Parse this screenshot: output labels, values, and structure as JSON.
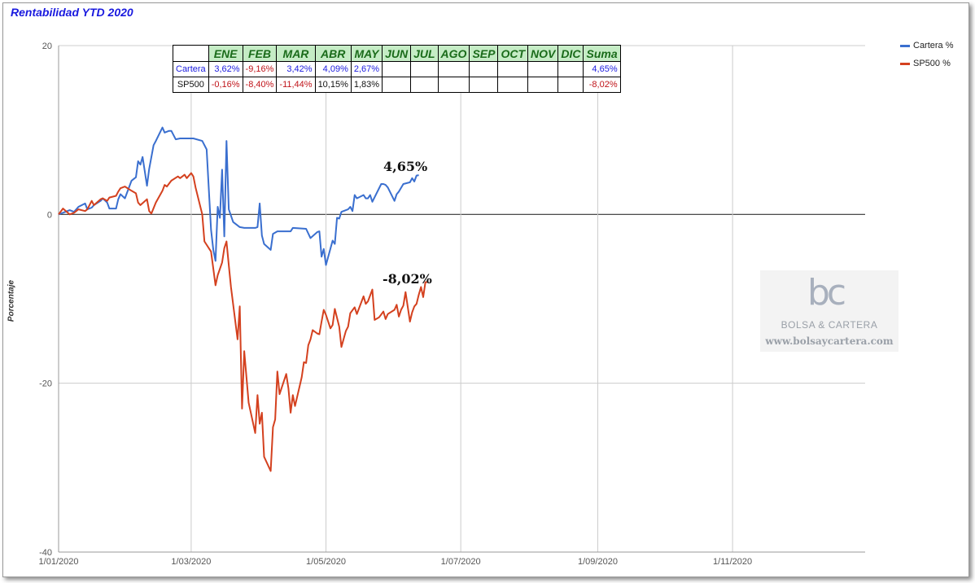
{
  "chart_data": {
    "type": "line",
    "title": "Rentabilidad YTD 2020",
    "ylabel": "Porcentaje",
    "xlabel": "",
    "ylim": [
      -40,
      20
    ],
    "y_ticks": [
      20,
      0,
      -20,
      -40
    ],
    "x_range": [
      "2020-01-01",
      "2020-12-31"
    ],
    "x_ticks": [
      {
        "date": "2020-01-01",
        "label": "1/01/2020"
      },
      {
        "date": "2020-03-01",
        "label": "1/03/2020"
      },
      {
        "date": "2020-05-01",
        "label": "1/05/2020"
      },
      {
        "date": "2020-07-01",
        "label": "1/07/2020"
      },
      {
        "date": "2020-09-01",
        "label": "1/09/2020"
      },
      {
        "date": "2020-11-01",
        "label": "1/11/2020"
      }
    ],
    "grid": true,
    "legend_position": "top-right",
    "series": [
      {
        "name": "Cartera %",
        "color": "#3a6fcf",
        "points": [
          [
            "2020-01-01",
            0
          ],
          [
            "2020-01-03",
            0.2
          ],
          [
            "2020-01-06",
            0.5
          ],
          [
            "2020-01-08",
            0.3
          ],
          [
            "2020-01-10",
            0.9
          ],
          [
            "2020-01-13",
            1.3
          ],
          [
            "2020-01-14",
            0.6
          ],
          [
            "2020-01-16",
            0.8
          ],
          [
            "2020-01-17",
            1.1
          ],
          [
            "2020-01-20",
            1.6
          ],
          [
            "2020-01-21",
            1.9
          ],
          [
            "2020-01-23",
            1.4
          ],
          [
            "2020-01-24",
            0.7
          ],
          [
            "2020-01-27",
            0.7
          ],
          [
            "2020-01-28",
            1.8
          ],
          [
            "2020-01-29",
            2.4
          ],
          [
            "2020-01-31",
            1.9
          ],
          [
            "2020-02-03",
            4.0
          ],
          [
            "2020-02-05",
            4.4
          ],
          [
            "2020-02-06",
            6.3
          ],
          [
            "2020-02-07",
            5.9
          ],
          [
            "2020-02-08",
            6.8
          ],
          [
            "2020-02-10",
            3.4
          ],
          [
            "2020-02-11",
            5.4
          ],
          [
            "2020-02-13",
            8.2
          ],
          [
            "2020-02-14",
            8.7
          ],
          [
            "2020-02-17",
            10.3
          ],
          [
            "2020-02-18",
            9.7
          ],
          [
            "2020-02-20",
            9.9
          ],
          [
            "2020-02-21",
            9.9
          ],
          [
            "2020-02-23",
            8.9
          ],
          [
            "2020-02-25",
            9.0
          ],
          [
            "2020-03-02",
            9.0
          ],
          [
            "2020-03-06",
            8.7
          ],
          [
            "2020-03-08",
            7.7
          ],
          [
            "2020-03-10",
            -1.8
          ],
          [
            "2020-03-11",
            -4.2
          ],
          [
            "2020-03-12",
            -5.5
          ],
          [
            "2020-03-13",
            0.9
          ],
          [
            "2020-03-14",
            -0.4
          ],
          [
            "2020-03-15",
            5.3
          ],
          [
            "2020-03-16",
            -2.6
          ],
          [
            "2020-03-17",
            8.7
          ],
          [
            "2020-03-18",
            0.6
          ],
          [
            "2020-03-20",
            -0.9
          ],
          [
            "2020-03-23",
            -1.5
          ],
          [
            "2020-03-25",
            -1.6
          ],
          [
            "2020-03-30",
            -1.6
          ],
          [
            "2020-03-31",
            -1.5
          ],
          [
            "2020-04-01",
            1.3
          ],
          [
            "2020-04-02",
            -2.5
          ],
          [
            "2020-04-03",
            -3.5
          ],
          [
            "2020-04-06",
            -4.2
          ],
          [
            "2020-04-07",
            -2.3
          ],
          [
            "2020-04-09",
            -2.0
          ],
          [
            "2020-04-14",
            -2.0
          ],
          [
            "2020-04-15",
            -2.0
          ],
          [
            "2020-04-16",
            -1.6
          ],
          [
            "2020-04-22",
            -1.7
          ],
          [
            "2020-04-24",
            -2.8
          ],
          [
            "2020-04-27",
            -2.1
          ],
          [
            "2020-04-28",
            -2.0
          ],
          [
            "2020-04-29",
            -5.0
          ],
          [
            "2020-04-30",
            -4.1
          ],
          [
            "2020-05-01",
            -6.0
          ],
          [
            "2020-05-04",
            -3.1
          ],
          [
            "2020-05-05",
            -3.5
          ],
          [
            "2020-05-06",
            -0.4
          ],
          [
            "2020-05-07",
            -0.5
          ],
          [
            "2020-05-08",
            0.3
          ],
          [
            "2020-05-11",
            0.6
          ],
          [
            "2020-05-12",
            0.9
          ],
          [
            "2020-05-13",
            0.4
          ],
          [
            "2020-05-14",
            2.3
          ],
          [
            "2020-05-15",
            1.9
          ],
          [
            "2020-05-18",
            2.3
          ],
          [
            "2020-05-19",
            1.9
          ],
          [
            "2020-05-20",
            1.9
          ],
          [
            "2020-05-21",
            2.3
          ],
          [
            "2020-05-22",
            1.5
          ],
          [
            "2020-05-26",
            3.6
          ],
          [
            "2020-05-27",
            3.6
          ],
          [
            "2020-05-28",
            3.5
          ],
          [
            "2020-05-29",
            3.2
          ],
          [
            "2020-06-01",
            1.6
          ],
          [
            "2020-06-02",
            2.4
          ],
          [
            "2020-06-03",
            2.7
          ],
          [
            "2020-06-05",
            3.6
          ],
          [
            "2020-06-08",
            3.8
          ],
          [
            "2020-06-09",
            4.3
          ],
          [
            "2020-06-10",
            3.9
          ],
          [
            "2020-06-11",
            4.6
          ],
          [
            "2020-06-12",
            4.65
          ]
        ]
      },
      {
        "name": "SP500 %",
        "color": "#d4411f",
        "points": [
          [
            "2020-01-01",
            0
          ],
          [
            "2020-01-03",
            0.7
          ],
          [
            "2020-01-06",
            0
          ],
          [
            "2020-01-08",
            0.2
          ],
          [
            "2020-01-10",
            0.6
          ],
          [
            "2020-01-13",
            0.4
          ],
          [
            "2020-01-14",
            0.6
          ],
          [
            "2020-01-16",
            1.6
          ],
          [
            "2020-01-17",
            1.1
          ],
          [
            "2020-01-20",
            1.8
          ],
          [
            "2020-01-21",
            1.9
          ],
          [
            "2020-01-23",
            1.6
          ],
          [
            "2020-01-24",
            2.0
          ],
          [
            "2020-01-27",
            2.2
          ],
          [
            "2020-01-28",
            2.7
          ],
          [
            "2020-01-29",
            3.1
          ],
          [
            "2020-01-31",
            3.3
          ],
          [
            "2020-02-03",
            2.8
          ],
          [
            "2020-02-05",
            2.5
          ],
          [
            "2020-02-06",
            1.4
          ],
          [
            "2020-02-07",
            1.1
          ],
          [
            "2020-02-10",
            1.8
          ],
          [
            "2020-02-11",
            0.4
          ],
          [
            "2020-02-12",
            0.1
          ],
          [
            "2020-02-14",
            1.4
          ],
          [
            "2020-02-17",
            2.8
          ],
          [
            "2020-02-18",
            3.5
          ],
          [
            "2020-02-19",
            3.3
          ],
          [
            "2020-02-21",
            4.0
          ],
          [
            "2020-02-24",
            4.5
          ],
          [
            "2020-02-25",
            4.3
          ],
          [
            "2020-02-27",
            4.7
          ],
          [
            "2020-02-28",
            4.3
          ],
          [
            "2020-03-01",
            4.9
          ],
          [
            "2020-03-02",
            4.5
          ],
          [
            "2020-03-03",
            3.2
          ],
          [
            "2020-03-06",
            0
          ],
          [
            "2020-03-07",
            -3.2
          ],
          [
            "2020-03-09",
            -4.0
          ],
          [
            "2020-03-10",
            -4.4
          ],
          [
            "2020-03-12",
            -8.4
          ],
          [
            "2020-03-13",
            -7.2
          ],
          [
            "2020-03-15",
            -5.7
          ],
          [
            "2020-03-16",
            -4.0
          ],
          [
            "2020-03-17",
            -3.2
          ],
          [
            "2020-03-18",
            -6.0
          ],
          [
            "2020-03-19",
            -8.6
          ],
          [
            "2020-03-22",
            -14.8
          ],
          [
            "2020-03-23",
            -10.9
          ],
          [
            "2020-03-24",
            -23.0
          ],
          [
            "2020-03-25",
            -16.2
          ],
          [
            "2020-03-27",
            -22.3
          ],
          [
            "2020-03-30",
            -25.9
          ],
          [
            "2020-03-31",
            -21.4
          ],
          [
            "2020-04-01",
            -24.8
          ],
          [
            "2020-04-02",
            -23.5
          ],
          [
            "2020-04-03",
            -28.7
          ],
          [
            "2020-04-06",
            -30.4
          ],
          [
            "2020-04-07",
            -25.2
          ],
          [
            "2020-04-08",
            -24.3
          ],
          [
            "2020-04-09",
            -18.6
          ],
          [
            "2020-04-10",
            -21.3
          ],
          [
            "2020-04-13",
            -18.9
          ],
          [
            "2020-04-14",
            -20.6
          ],
          [
            "2020-04-15",
            -23.5
          ],
          [
            "2020-04-16",
            -21.4
          ],
          [
            "2020-04-17",
            -22.7
          ],
          [
            "2020-04-20",
            -19.3
          ],
          [
            "2020-04-21",
            -17.5
          ],
          [
            "2020-04-22",
            -17.6
          ],
          [
            "2020-04-23",
            -15.5
          ],
          [
            "2020-04-24",
            -14.8
          ],
          [
            "2020-04-25",
            -13.7
          ],
          [
            "2020-04-27",
            -14.1
          ],
          [
            "2020-04-28",
            -14.2
          ],
          [
            "2020-04-29",
            -12.7
          ],
          [
            "2020-04-30",
            -11.3
          ],
          [
            "2020-05-01",
            -11.9
          ],
          [
            "2020-05-03",
            -13.5
          ],
          [
            "2020-05-04",
            -13.1
          ],
          [
            "2020-05-05",
            -11.2
          ],
          [
            "2020-05-07",
            -13.3
          ],
          [
            "2020-05-08",
            -15.7
          ],
          [
            "2020-05-10",
            -13.8
          ],
          [
            "2020-05-11",
            -13.3
          ],
          [
            "2020-05-12",
            -11.7
          ],
          [
            "2020-05-14",
            -11.0
          ],
          [
            "2020-05-15",
            -11.8
          ],
          [
            "2020-05-18",
            -9.7
          ],
          [
            "2020-05-19",
            -10.6
          ],
          [
            "2020-05-20",
            -10.3
          ],
          [
            "2020-05-21",
            -9.6
          ],
          [
            "2020-05-22",
            -8.9
          ],
          [
            "2020-05-23",
            -12.5
          ],
          [
            "2020-05-25",
            -12.2
          ],
          [
            "2020-05-27",
            -11.5
          ],
          [
            "2020-05-28",
            -12.4
          ],
          [
            "2020-05-29",
            -11.8
          ],
          [
            "2020-06-01",
            -11.3
          ],
          [
            "2020-06-02",
            -10.7
          ],
          [
            "2020-06-03",
            -12.1
          ],
          [
            "2020-06-04",
            -11.3
          ],
          [
            "2020-06-05",
            -10.8
          ],
          [
            "2020-06-06",
            -9.2
          ],
          [
            "2020-06-08",
            -12.7
          ],
          [
            "2020-06-09",
            -11.6
          ],
          [
            "2020-06-10",
            -10.9
          ],
          [
            "2020-06-11",
            -10.6
          ],
          [
            "2020-06-12",
            -9.5
          ],
          [
            "2020-06-13",
            -8.6
          ],
          [
            "2020-06-14",
            -9.8
          ],
          [
            "2020-06-15",
            -8.02
          ],
          [
            "2020-06-16",
            -8.02
          ]
        ]
      }
    ],
    "annotations": [
      {
        "text": "4,65%",
        "series": "Cartera %"
      },
      {
        "text": "-8,02%",
        "series": "SP500 %"
      }
    ]
  },
  "table": {
    "header": [
      "",
      "ENE",
      "FEB",
      "MAR",
      "ABR",
      "MAY",
      "JUN",
      "JUL",
      "AGO",
      "SEP",
      "OCT",
      "NOV",
      "DIC",
      "Suma"
    ],
    "rows": [
      {
        "label": "Cartera",
        "values": [
          "3,62%",
          "-9,16%",
          "3,42%",
          "4,09%",
          "2,67%",
          "",
          "",
          "",
          "",
          "",
          "",
          "",
          "4,65%"
        ]
      },
      {
        "label": "SP500",
        "values": [
          "-0,16%",
          "-8,40%",
          "-11,44%",
          "10,15%",
          "1,83%",
          "",
          "",
          "",
          "",
          "",
          "",
          "",
          "-8,02%"
        ]
      }
    ],
    "colors": {
      "header_bg": "#c5ecc5",
      "header_text": "#1a6b1a",
      "positive": "#1a1adf",
      "negative": "#c0141a",
      "neutral": "#111111"
    }
  },
  "watermark": {
    "logo": "bc",
    "name": "BOLSA & CARTERA",
    "url": "www.bolsaycartera.com"
  },
  "colors": {
    "title": "#1a1adf",
    "grid": "#cccccc",
    "zero_line": "#333333"
  }
}
